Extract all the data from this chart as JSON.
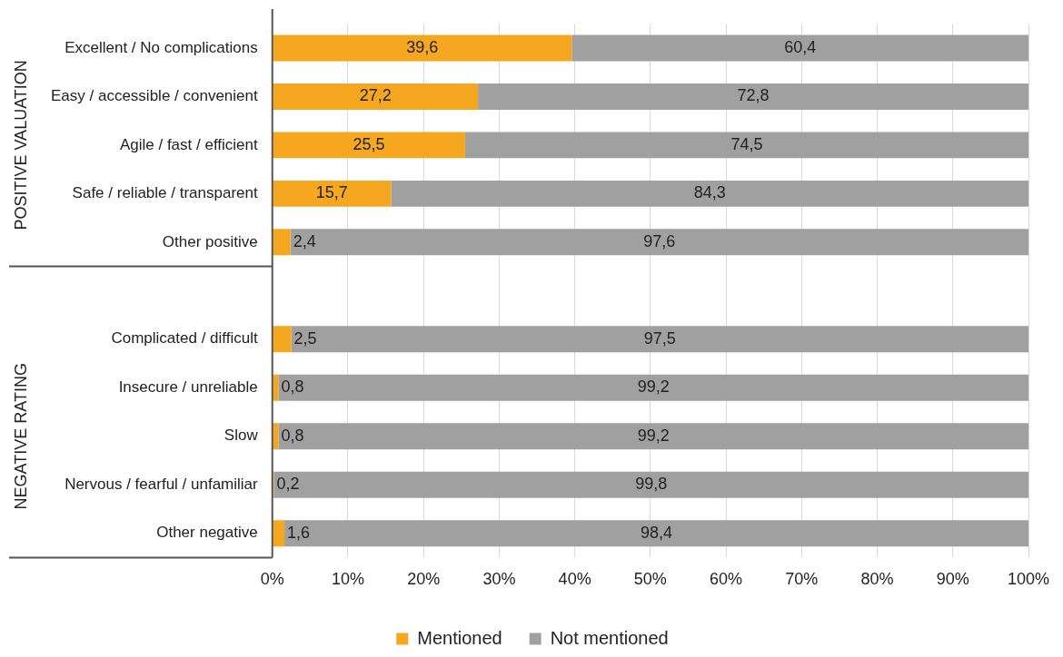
{
  "chart_data": {
    "type": "bar",
    "orientation": "horizontal",
    "stacked": true,
    "categories": [
      "Excellent / No complications",
      "Easy / accessible / convenient",
      "Agile / fast / efficient",
      "Safe / reliable / transparent",
      "Other positive",
      null,
      "Complicated / difficult",
      "Insecure / unreliable",
      "Slow",
      "Nervous / fearful / unfamiliar",
      "Other negative"
    ],
    "series": [
      {
        "name": "Mentioned",
        "color": "#f5a81f",
        "values": [
          39.6,
          27.2,
          25.5,
          15.7,
          2.4,
          null,
          2.5,
          0.8,
          0.8,
          0.2,
          1.6
        ],
        "value_labels": [
          "39,6",
          "27,2",
          "25,5",
          "15,7",
          "2,4",
          null,
          "2,5",
          "0,8",
          "0,8",
          "0,2",
          "1,6"
        ]
      },
      {
        "name": "Not mentioned",
        "color": "#a0a0a0",
        "values": [
          60.4,
          72.8,
          74.5,
          84.3,
          97.6,
          null,
          97.5,
          99.2,
          99.2,
          99.8,
          98.4
        ],
        "value_labels": [
          "60,4",
          "72,8",
          "74,5",
          "84,3",
          "97,6",
          null,
          "97,5",
          "99,2",
          "99,2",
          "99,8",
          "98,4"
        ]
      }
    ],
    "xlim": [
      0,
      100
    ],
    "xticks": [
      {
        "value": 0,
        "label": "0%"
      },
      {
        "value": 10,
        "label": "10%"
      },
      {
        "value": 20,
        "label": "20%"
      },
      {
        "value": 30,
        "label": "30%"
      },
      {
        "value": 40,
        "label": "40%"
      },
      {
        "value": 50,
        "label": "50%"
      },
      {
        "value": 60,
        "label": "60%"
      },
      {
        "value": 70,
        "label": "70%"
      },
      {
        "value": 80,
        "label": "80%"
      },
      {
        "value": 90,
        "label": "90%"
      },
      {
        "value": 100,
        "label": "100%"
      }
    ],
    "grid": "x",
    "legend": "bottom",
    "annotations": [
      "POSITIVE VALUATION",
      "NEGATIVE RATING"
    ]
  }
}
